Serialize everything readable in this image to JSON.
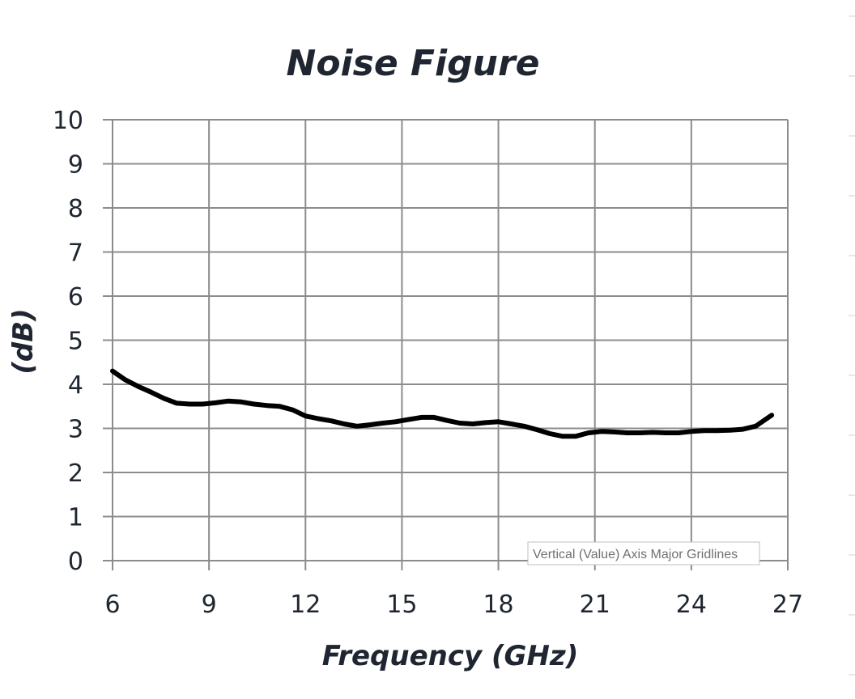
{
  "chart_data": {
    "type": "line",
    "title": "Noise Figure",
    "xlabel": "Frequency (GHz)",
    "ylabel": "(dB)",
    "xlim": [
      6,
      27
    ],
    "ylim": [
      0,
      10
    ],
    "x_ticks": [
      6,
      9,
      12,
      15,
      18,
      21,
      24,
      27
    ],
    "y_ticks": [
      0,
      1,
      2,
      3,
      4,
      5,
      6,
      7,
      8,
      9,
      10
    ],
    "grid": true,
    "legend": "none",
    "series": [
      {
        "color": "#000000",
        "x": [
          6.0,
          6.4,
          6.8,
          7.2,
          7.6,
          8.0,
          8.4,
          8.8,
          9.2,
          9.6,
          10.0,
          10.4,
          10.8,
          11.2,
          11.6,
          12.0,
          12.4,
          12.8,
          13.2,
          13.6,
          14.0,
          14.4,
          14.8,
          15.2,
          15.6,
          16.0,
          16.4,
          16.8,
          17.2,
          17.6,
          18.0,
          18.4,
          18.8,
          19.2,
          19.6,
          20.0,
          20.4,
          20.8,
          21.2,
          21.6,
          22.0,
          22.4,
          22.8,
          23.2,
          23.6,
          24.0,
          24.4,
          24.8,
          25.2,
          25.6,
          26.0,
          26.5
        ],
        "y": [
          4.3,
          4.1,
          3.95,
          3.82,
          3.68,
          3.57,
          3.55,
          3.55,
          3.58,
          3.62,
          3.6,
          3.55,
          3.52,
          3.5,
          3.42,
          3.28,
          3.22,
          3.17,
          3.1,
          3.05,
          3.08,
          3.12,
          3.15,
          3.2,
          3.25,
          3.25,
          3.18,
          3.12,
          3.1,
          3.13,
          3.15,
          3.1,
          3.05,
          2.97,
          2.88,
          2.82,
          2.82,
          2.9,
          2.93,
          2.92,
          2.9,
          2.9,
          2.91,
          2.9,
          2.9,
          2.93,
          2.95,
          2.95,
          2.96,
          2.98,
          3.05,
          3.3
        ]
      }
    ]
  },
  "tooltip": {
    "text": "Vertical (Value) Axis Major Gridlines"
  },
  "colors": {
    "grid": "#8c8c8c",
    "axis_text": "#1f2631",
    "line": "#000000",
    "tooltip_border": "#bfbfbf",
    "tooltip_text": "#707070"
  }
}
